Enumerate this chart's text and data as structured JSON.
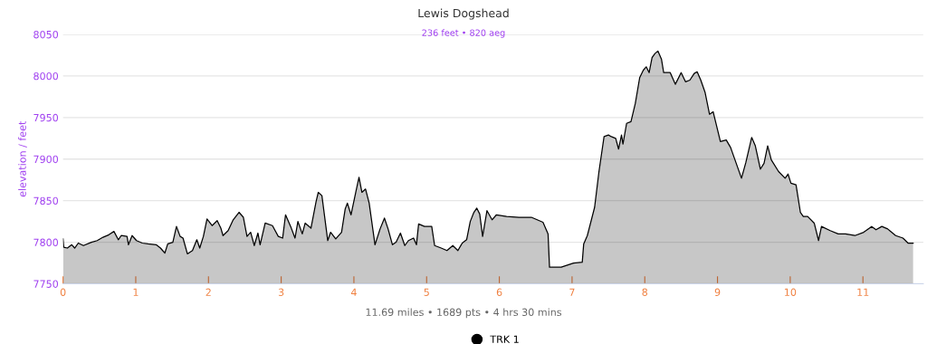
{
  "chart_data": {
    "type": "area",
    "title": "Lewis Dogshead",
    "subtitle": "236 feet • 820 aeg",
    "ylabel": "elevation / feet",
    "annotations": [
      "11.69 miles • 1689 pts • 4 hrs 30 mins"
    ],
    "xlim": [
      0,
      11.83
    ],
    "xticks": [
      0,
      1,
      2,
      3,
      4,
      5,
      6,
      7,
      8,
      9,
      10,
      11
    ],
    "ylim": [
      7750,
      8050
    ],
    "yticks": [
      7750,
      7800,
      7850,
      7900,
      7950,
      8000,
      8050
    ],
    "grid": "y",
    "legend": "bottom",
    "series": [
      {
        "name": "TRK 1",
        "color": "#000000",
        "x": [
          0,
          0.01,
          0.06,
          0.12,
          0.16,
          0.21,
          0.28,
          0.39,
          0.47,
          0.55,
          0.63,
          0.7,
          0.76,
          0.8,
          0.88,
          0.9,
          0.95,
          1.01,
          1.09,
          1.17,
          1.28,
          1.34,
          1.4,
          1.44,
          1.51,
          1.56,
          1.61,
          1.65,
          1.71,
          1.78,
          1.84,
          1.88,
          1.93,
          1.98,
          2.05,
          2.12,
          2.17,
          2.2,
          2.27,
          2.34,
          2.42,
          2.48,
          2.53,
          2.58,
          2.63,
          2.68,
          2.71,
          2.78,
          2.88,
          2.96,
          3.02,
          3.06,
          3.13,
          3.19,
          3.23,
          3.29,
          3.33,
          3.41,
          3.48,
          3.51,
          3.56,
          3.64,
          3.68,
          3.75,
          3.83,
          3.88,
          3.91,
          3.96,
          4.03,
          4.07,
          4.11,
          4.16,
          4.21,
          4.29,
          4.36,
          4.42,
          4.47,
          4.53,
          4.58,
          4.64,
          4.7,
          4.75,
          4.82,
          4.86,
          4.89,
          4.97,
          5.07,
          5.11,
          5.2,
          5.28,
          5.36,
          5.43,
          5.49,
          5.55,
          5.6,
          5.65,
          5.69,
          5.73,
          5.77,
          5.83,
          5.9,
          5.96,
          6.1,
          6.27,
          6.44,
          6.6,
          6.67,
          6.69,
          6.85,
          7.02,
          7.14,
          7.16,
          7.21,
          7.31,
          7.37,
          7.44,
          7.5,
          7.54,
          7.6,
          7.64,
          7.68,
          7.7,
          7.75,
          7.81,
          7.87,
          7.93,
          7.98,
          8.02,
          8.06,
          8.1,
          8.14,
          8.18,
          8.23,
          8.26,
          8.35,
          8.42,
          8.5,
          8.56,
          8.62,
          8.68,
          8.72,
          8.77,
          8.83,
          8.89,
          8.94,
          9.04,
          9.12,
          9.18,
          9.33,
          9.39,
          9.47,
          9.52,
          9.59,
          9.64,
          9.69,
          9.74,
          9.84,
          9.93,
          9.97,
          10.01,
          10.08,
          10.14,
          10.18,
          10.24,
          10.33,
          10.39,
          10.43,
          10.55,
          10.66,
          10.76,
          10.89,
          11.01,
          11.12,
          11.18,
          11.26,
          11.34,
          11.45,
          11.55,
          11.62,
          11.69
        ],
        "values": [
          7804,
          7794,
          7793,
          7797,
          7793,
          7799,
          7796,
          7800,
          7802,
          7806,
          7809,
          7813,
          7803,
          7808,
          7807,
          7797,
          7808,
          7802,
          7799,
          7798,
          7797,
          7793,
          7787,
          7798,
          7800,
          7819,
          7807,
          7805,
          7786,
          7790,
          7803,
          7793,
          7807,
          7828,
          7820,
          7826,
          7817,
          7808,
          7814,
          7827,
          7836,
          7830,
          7807,
          7812,
          7796,
          7811,
          7797,
          7823,
          7820,
          7807,
          7805,
          7833,
          7819,
          7805,
          7825,
          7810,
          7823,
          7817,
          7849,
          7860,
          7856,
          7802,
          7812,
          7804,
          7812,
          7840,
          7847,
          7833,
          7862,
          7878,
          7860,
          7864,
          7847,
          7797,
          7816,
          7829,
          7816,
          7797,
          7800,
          7811,
          7796,
          7802,
          7805,
          7797,
          7822,
          7819,
          7819,
          7796,
          7793,
          7790,
          7796,
          7790,
          7799,
          7803,
          7825,
          7836,
          7841,
          7834,
          7807,
          7838,
          7827,
          7833,
          7831,
          7830,
          7830,
          7824,
          7810,
          7770,
          7770,
          7775,
          7776,
          7798,
          7808,
          7842,
          7885,
          7927,
          7929,
          7927,
          7925,
          7912,
          7929,
          7918,
          7943,
          7945,
          7967,
          7998,
          8007,
          8011,
          8004,
          8022,
          8027,
          8030,
          8020,
          8004,
          8004,
          7990,
          8004,
          7993,
          7995,
          8003,
          8005,
          7995,
          7980,
          7954,
          7957,
          7921,
          7923,
          7914,
          7877,
          7896,
          7926,
          7916,
          7888,
          7895,
          7916,
          7899,
          7885,
          7877,
          7882,
          7871,
          7869,
          7836,
          7831,
          7831,
          7823,
          7802,
          7819,
          7814,
          7810,
          7810,
          7808,
          7812,
          7819,
          7815,
          7819,
          7816,
          7808,
          7805,
          7799,
          7799
        ]
      }
    ]
  }
}
